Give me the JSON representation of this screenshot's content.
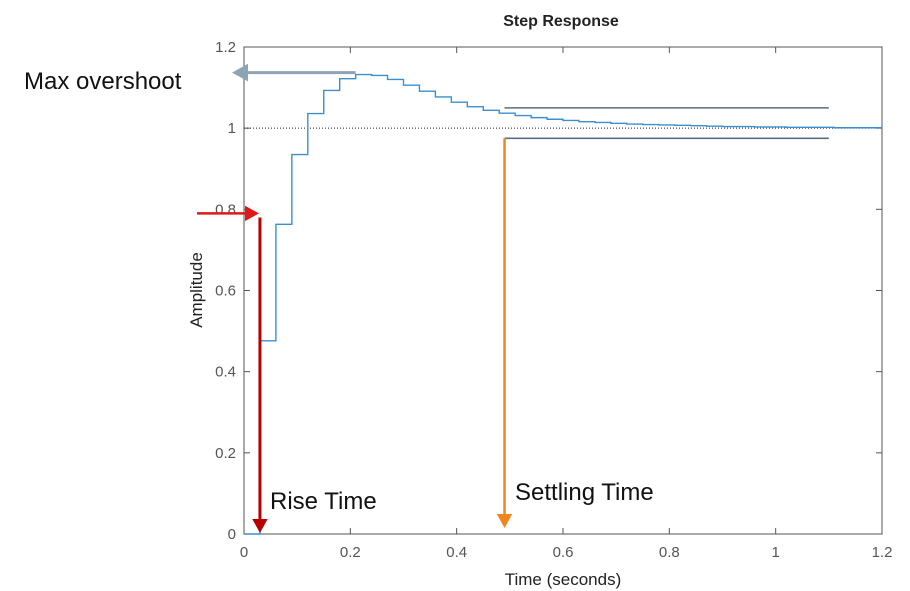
{
  "chart_data": {
    "type": "line",
    "title": "Step Response",
    "xlabel": "Time (seconds)",
    "ylabel": "Amplitude",
    "xlim": [
      0,
      1.2
    ],
    "ylim": [
      0,
      1.2
    ],
    "xticks": [
      0,
      0.2,
      0.4,
      0.6,
      0.8,
      1,
      1.2
    ],
    "yticks": [
      0,
      0.2,
      0.4,
      0.6,
      0.8,
      1,
      1.2
    ],
    "xtick_labels": [
      "0",
      "0.2",
      "0.4",
      "0.6",
      "0.8",
      "1",
      "1.2"
    ],
    "ytick_labels": [
      "0",
      "0.2",
      "0.4",
      "0.6",
      "0.8",
      "1",
      "1.2"
    ],
    "grid": false,
    "reference_line": {
      "y": 1,
      "style": "dotted"
    },
    "series": [
      {
        "style": "stairs",
        "color": "#3a8fd0",
        "x": [
          0,
          0.03,
          0.06,
          0.09,
          0.12,
          0.15,
          0.18,
          0.21,
          0.24,
          0.27,
          0.3,
          0.33,
          0.36,
          0.39,
          0.42,
          0.45,
          0.48,
          0.51,
          0.54,
          0.57,
          0.6,
          0.63,
          0.66,
          0.69,
          0.72,
          0.75,
          0.78,
          0.81,
          0.84,
          0.87,
          0.9,
          0.93,
          0.96,
          0.99,
          1.02,
          1.05,
          1.08,
          1.11,
          1.14,
          1.2
        ],
        "y": [
          0,
          0.476,
          0.763,
          0.935,
          1.036,
          1.093,
          1.122,
          1.132,
          1.13,
          1.12,
          1.106,
          1.091,
          1.077,
          1.064,
          1.053,
          1.044,
          1.037,
          1.031,
          1.026,
          1.022,
          1.019,
          1.016,
          1.014,
          1.012,
          1.01,
          1.009,
          1.008,
          1.007,
          1.006,
          1.005,
          1.004,
          1.004,
          1.003,
          1.003,
          1.002,
          1.002,
          1.002,
          1.001,
          1.001,
          1.001
        ]
      }
    ],
    "settling_band": {
      "upper": 1.05,
      "lower": 0.975,
      "x_start": 0.49,
      "x_end": 1.1
    },
    "annotations": {
      "max_overshoot": "Max overshoot",
      "rise_time": "Rise Time",
      "settling_time": "Settling Time"
    },
    "colors": {
      "response": "#3a8fd0",
      "band": "#5a6e80",
      "overshoot_arrow": "#8ea3b6",
      "rise_arrow_in": "#e01818",
      "rise_arrow_down": "#b80000",
      "settling_arrow": "#f0861e"
    }
  }
}
